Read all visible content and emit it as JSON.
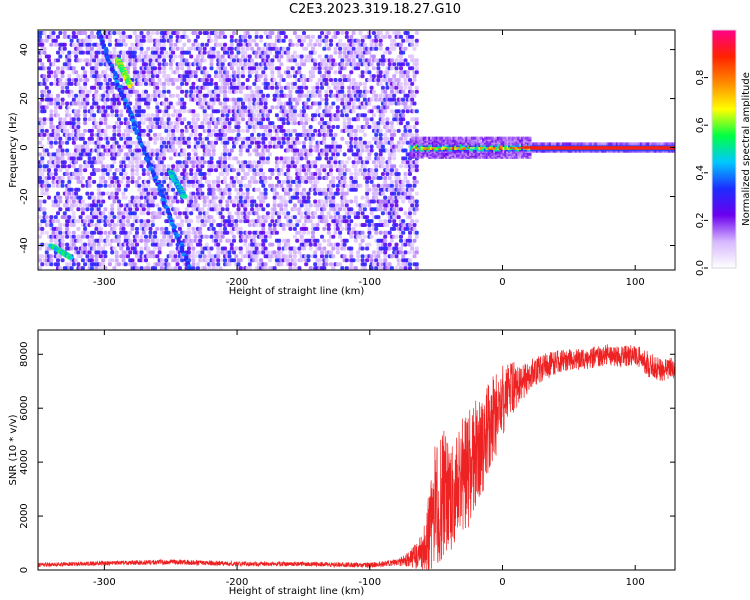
{
  "figure": {
    "title": "C2E3.2023.319.18.27.G10"
  },
  "colors": {
    "snr_line": "#ee2222",
    "axis": "#000000",
    "background": "#ffffff",
    "spectrogram_low": "#b98cff",
    "spectrogram_mid": "#6a00ee",
    "spectrogram_high": "#ff1a1a",
    "colorbar_stops": [
      "#ffffff",
      "#d7b7ff",
      "#6a00ee",
      "#1e2cff",
      "#00c8ff",
      "#00ff44",
      "#ffff00",
      "#ff8a00",
      "#ff2200",
      "#ff0088"
    ]
  },
  "chart_data": [
    {
      "type": "heatmap",
      "name": "spectrogram",
      "xlabel": "Height of straight line (km)",
      "ylabel": "Frequency (Hz)",
      "xlim": [
        -350,
        130
      ],
      "ylim": [
        -50,
        48
      ],
      "x_ticks": [
        -300,
        -200,
        -100,
        0,
        100
      ],
      "y_ticks": [
        -40,
        -20,
        0,
        20,
        40
      ],
      "colorbar": {
        "label": "Normalized spectral amplitude",
        "range": [
          0.0,
          1.0
        ],
        "ticks": [
          0.0,
          0.2,
          0.4,
          0.6,
          0.8
        ]
      },
      "features": {
        "noise_region_x": [
          -350,
          -65
        ],
        "noise_density": 0.2,
        "carrier_start_x": -70,
        "carrier_frequency": 0,
        "carrier_amplitude": 0.9,
        "diagonal_tracks": [
          {
            "x": [
              -305,
              -235
            ],
            "y": [
              48,
              -50
            ],
            "amplitude": 0.35
          },
          {
            "x": [
              -290,
              -280
            ],
            "y": [
              36,
              25
            ],
            "amplitude": 0.6
          },
          {
            "x": [
              -250,
              -240
            ],
            "y": [
              -10,
              -20
            ],
            "amplitude": 0.45
          },
          {
            "x": [
              -340,
              -325
            ],
            "y": [
              -40,
              -45
            ],
            "amplitude": 0.5
          }
        ]
      }
    },
    {
      "type": "line",
      "name": "snr",
      "xlabel": "Height of straight line (km)",
      "ylabel": "SNR (10 * v/v)",
      "xlim": [
        -350,
        130
      ],
      "ylim": [
        0,
        8900
      ],
      "x_ticks": [
        -300,
        -200,
        -100,
        0,
        100
      ],
      "y_ticks": [
        0,
        2000,
        4000,
        6000,
        8000
      ],
      "series": [
        {
          "x": [
            -350,
            -300,
            -250,
            -200,
            -150,
            -100,
            -80,
            -70,
            -60,
            -55,
            -50,
            -45,
            -40,
            -35,
            -30,
            -25,
            -20,
            -15,
            -10,
            -5,
            0,
            5,
            10,
            15,
            20,
            30,
            40,
            50,
            60,
            70,
            80,
            90,
            100,
            110,
            120,
            130
          ],
          "y": [
            200,
            250,
            300,
            230,
            220,
            180,
            280,
            400,
            700,
            1500,
            2400,
            2800,
            2600,
            3200,
            3500,
            3800,
            4300,
            4600,
            5300,
            5700,
            6200,
            6700,
            6800,
            7000,
            7200,
            7500,
            7700,
            7800,
            7800,
            7900,
            8000,
            7900,
            8000,
            7600,
            7400,
            7500
          ],
          "spread": [
            80,
            80,
            100,
            90,
            80,
            100,
            120,
            300,
            700,
            1800,
            2500,
            2500,
            2200,
            2200,
            2200,
            2200,
            2000,
            1900,
            1800,
            1600,
            1500,
            1200,
            900,
            700,
            600,
            500,
            450,
            400,
            400,
            400,
            400,
            400,
            400,
            500,
            400,
            400
          ]
        }
      ]
    }
  ]
}
